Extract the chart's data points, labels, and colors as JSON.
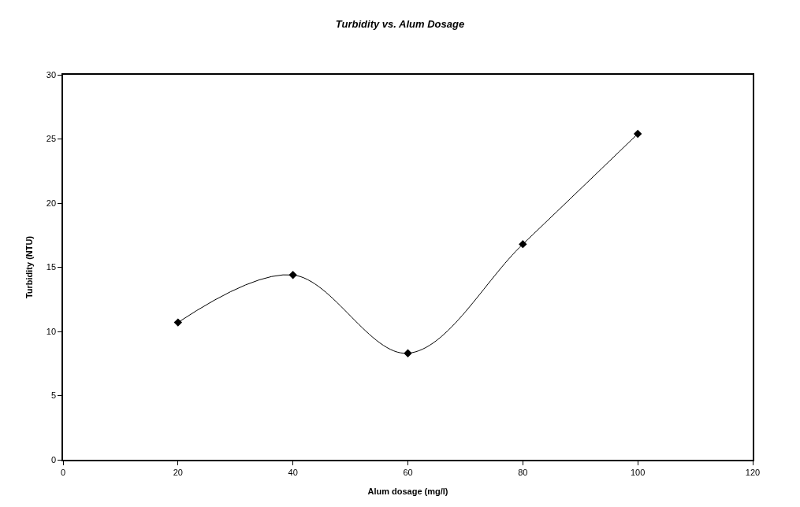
{
  "chart_data": {
    "type": "line",
    "title": "Turbidity vs. Alum Dosage",
    "xlabel": "Alum dosage (mg/l)",
    "ylabel": "Turbidity (NTU)",
    "x": [
      20,
      40,
      60,
      80,
      100
    ],
    "series": [
      {
        "color": "#000000",
        "values": [
          10.7,
          14.4,
          8.3,
          16.8,
          25.4
        ]
      }
    ],
    "xlim": [
      0,
      120
    ],
    "xticks": [
      0,
      20,
      40,
      60,
      80,
      100,
      120
    ],
    "ylim": [
      0,
      30
    ],
    "yticks": [
      0,
      5,
      10,
      15,
      20,
      25,
      30
    ],
    "marker": "diamond",
    "line_style": "solid"
  }
}
